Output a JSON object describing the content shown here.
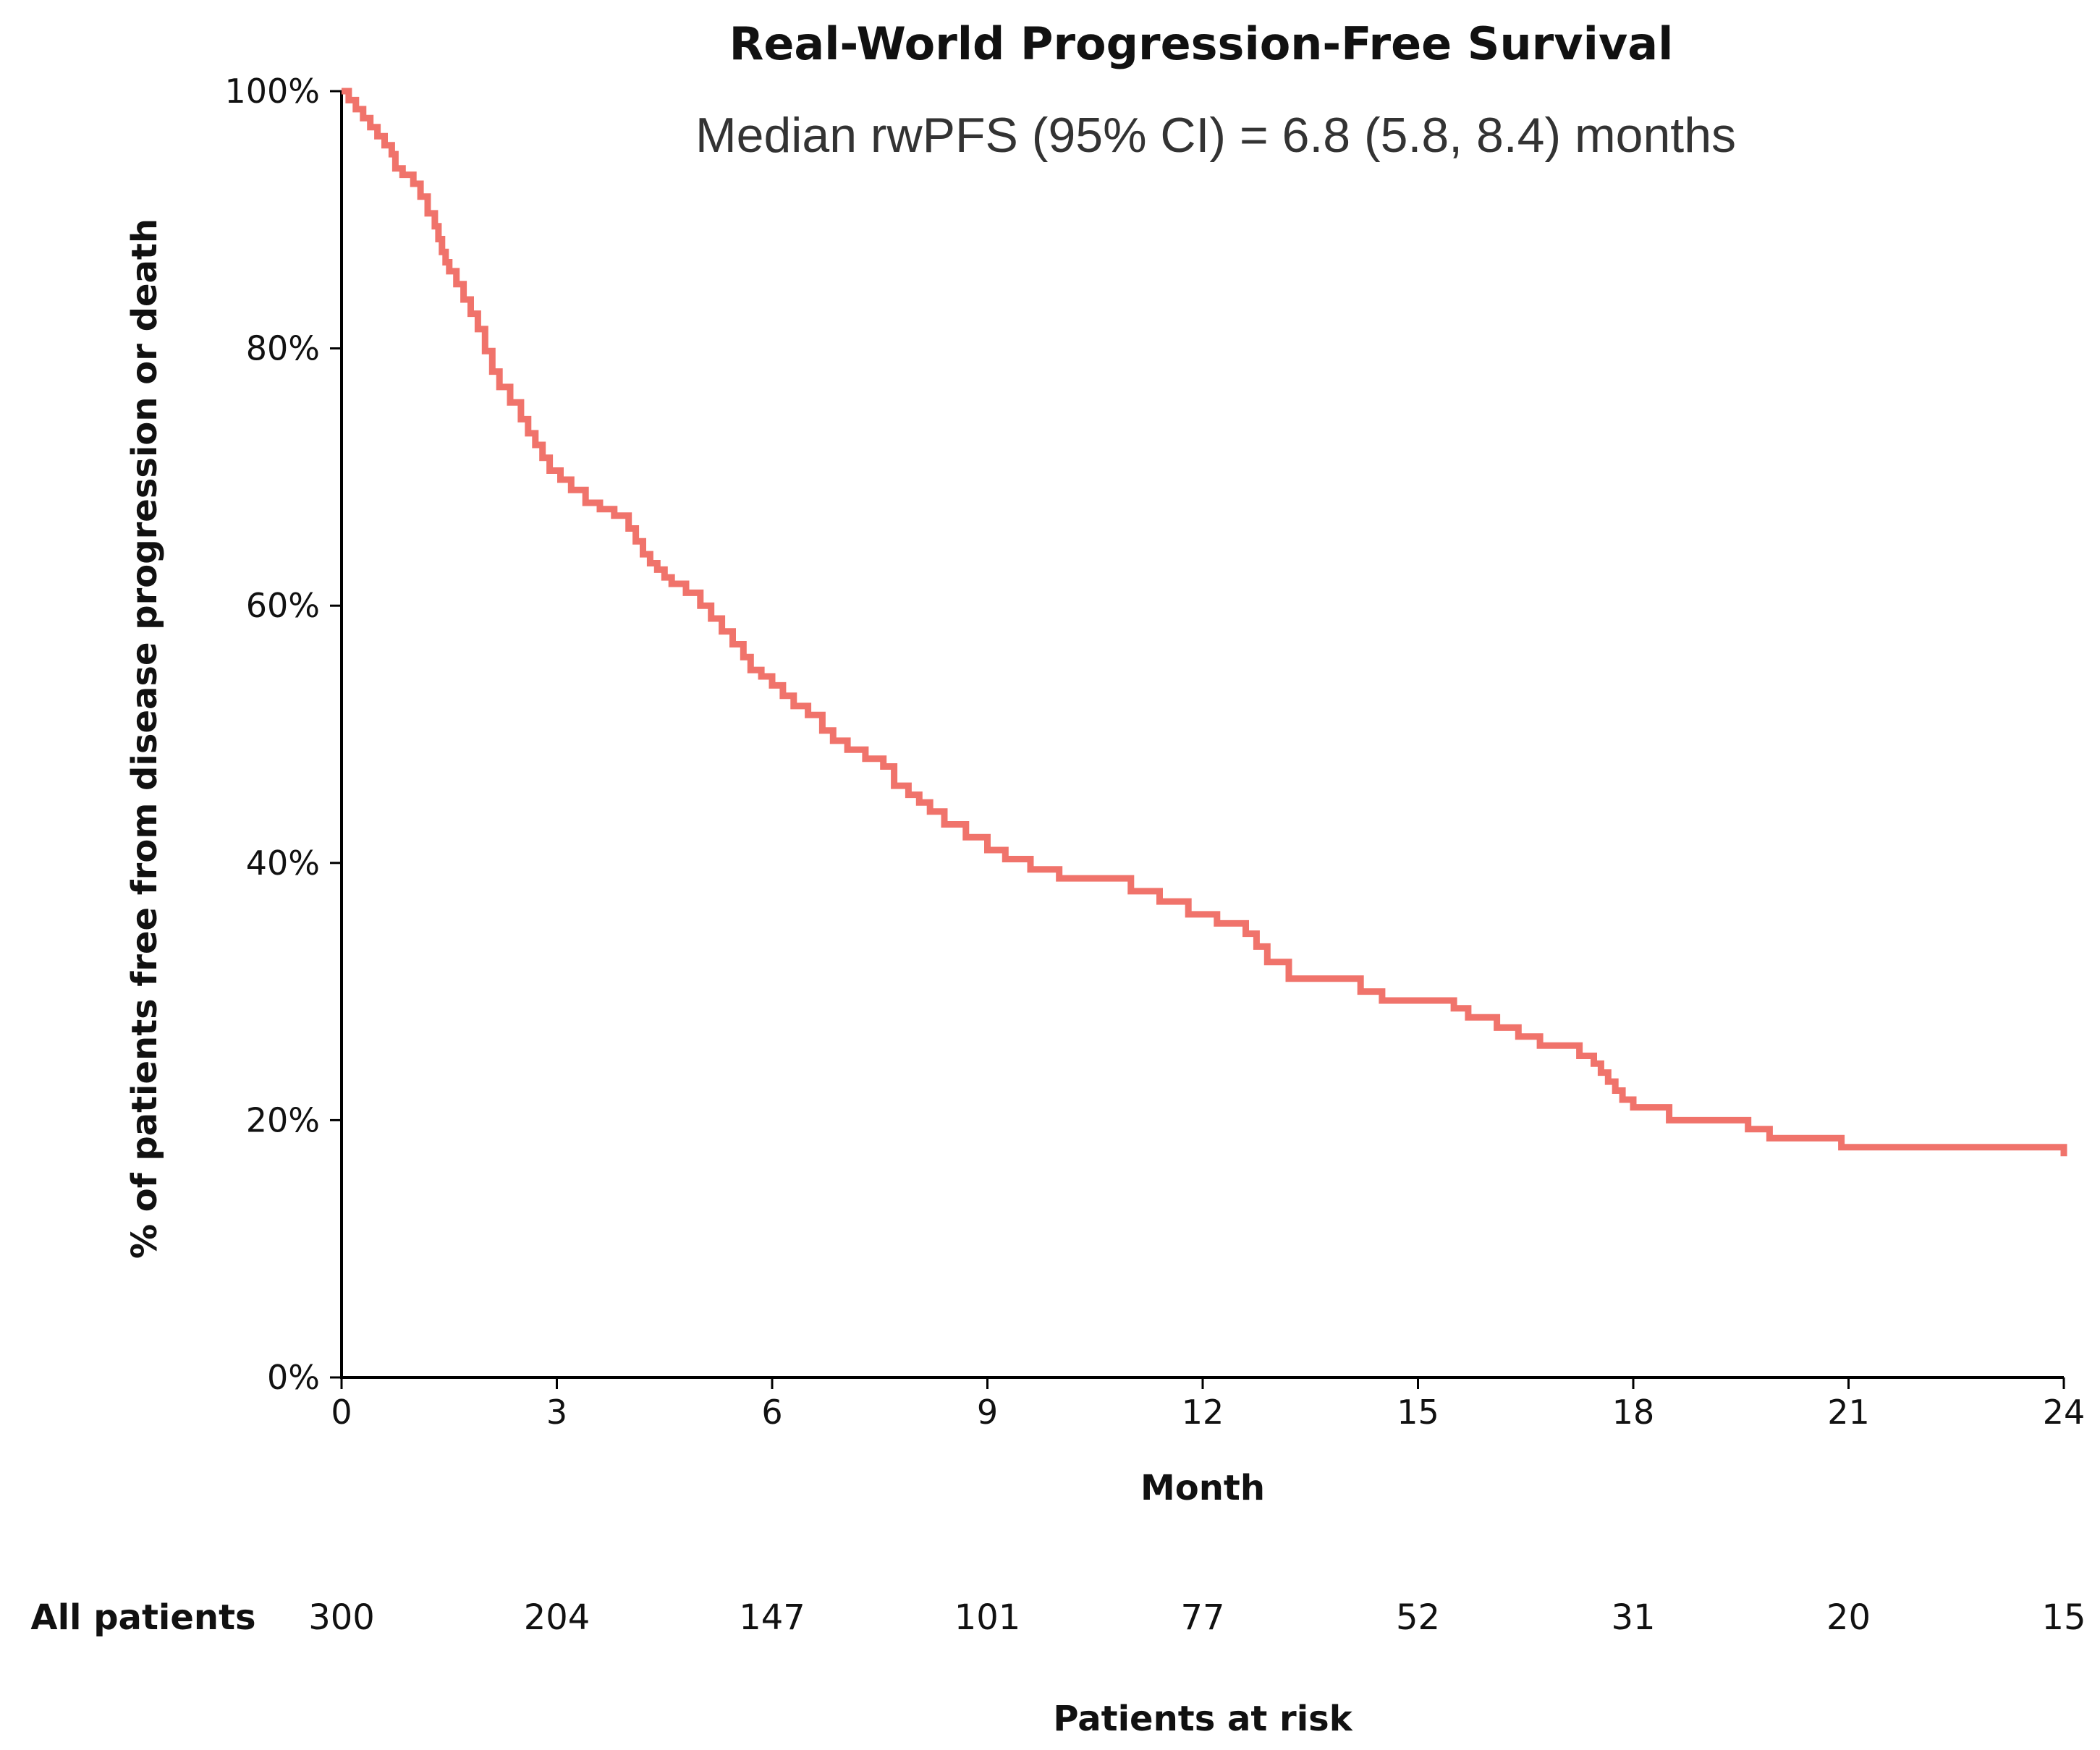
{
  "colors": {
    "curve": "#F0736B",
    "axis": "#000000",
    "text": "#111111",
    "subtitle": "#333333"
  },
  "chart_data": {
    "type": "line",
    "step": true,
    "title": "Real-World Progression-Free Survival",
    "subtitle": "Median rwPFS (95% CI) = 6.8 (5.8, 8.4) months",
    "xlabel": "Month",
    "ylabel": "% of patients free from disease progression or death",
    "xlim": [
      0,
      24
    ],
    "ylim": [
      0,
      100
    ],
    "xticks": [
      0,
      3,
      6,
      9,
      12,
      15,
      18,
      21,
      24
    ],
    "xtick_labels": [
      "0",
      "3",
      "6",
      "9",
      "12",
      "15",
      "18",
      "21",
      "24"
    ],
    "yticks": [
      0,
      20,
      40,
      60,
      80,
      100
    ],
    "ytick_labels": [
      "0%",
      "20%",
      "40%",
      "60%",
      "80%",
      "100%"
    ],
    "series": [
      {
        "name": "All patients",
        "x": [
          0,
          0.1,
          0.2,
          0.3,
          0.4,
          0.5,
          0.6,
          0.7,
          0.75,
          0.85,
          1.0,
          1.1,
          1.2,
          1.3,
          1.35,
          1.4,
          1.45,
          1.5,
          1.6,
          1.7,
          1.8,
          1.9,
          2.0,
          2.1,
          2.2,
          2.35,
          2.5,
          2.6,
          2.7,
          2.8,
          2.9,
          3.05,
          3.2,
          3.4,
          3.6,
          3.8,
          4.0,
          4.1,
          4.2,
          4.3,
          4.4,
          4.5,
          4.6,
          4.8,
          5.0,
          5.15,
          5.3,
          5.45,
          5.6,
          5.7,
          5.85,
          6.0,
          6.15,
          6.3,
          6.5,
          6.7,
          6.85,
          7.05,
          7.3,
          7.55,
          7.7,
          7.9,
          8.05,
          8.2,
          8.4,
          8.7,
          9.0,
          9.25,
          9.6,
          10.0,
          11.0,
          11.4,
          11.8,
          12.2,
          12.6,
          12.75,
          12.9,
          13.2,
          14.2,
          14.5,
          15.5,
          15.7,
          16.1,
          16.4,
          16.7,
          17.25,
          17.45,
          17.55,
          17.65,
          17.75,
          17.85,
          18.0,
          18.5,
          19.6,
          19.9,
          20.9,
          24.0
        ],
        "values": [
          100,
          99.3,
          98.6,
          97.9,
          97.2,
          96.5,
          95.8,
          95.1,
          94.0,
          93.5,
          92.8,
          91.8,
          90.5,
          89.5,
          88.5,
          87.5,
          86.7,
          86.0,
          85.0,
          83.8,
          82.7,
          81.5,
          79.8,
          78.2,
          77.0,
          75.8,
          74.5,
          73.4,
          72.5,
          71.5,
          70.5,
          69.8,
          69.0,
          68.0,
          67.5,
          67.0,
          66.0,
          65.0,
          64.0,
          63.3,
          62.8,
          62.2,
          61.7,
          61.0,
          60.0,
          59.0,
          58.0,
          57.0,
          56.0,
          55.0,
          54.5,
          53.8,
          53.0,
          52.2,
          51.5,
          50.3,
          49.5,
          48.8,
          48.1,
          47.5,
          46.0,
          45.3,
          44.7,
          44.0,
          43.0,
          42.0,
          41.0,
          40.3,
          39.5,
          38.8,
          37.8,
          37.0,
          36.0,
          35.3,
          34.5,
          33.5,
          32.3,
          31.0,
          30.0,
          29.3,
          28.7,
          28.0,
          27.2,
          26.5,
          25.8,
          25.0,
          24.4,
          23.7,
          23.0,
          22.3,
          21.6,
          21.0,
          20.0,
          19.3,
          18.6,
          17.9,
          17.2
        ]
      }
    ],
    "risk_table": {
      "title": "Patients at risk",
      "row_label": "All patients",
      "times": [
        0,
        3,
        6,
        9,
        12,
        15,
        18,
        21,
        24
      ],
      "counts": [
        "300",
        "204",
        "147",
        "101",
        "77",
        "52",
        "31",
        "20",
        "15"
      ]
    }
  }
}
